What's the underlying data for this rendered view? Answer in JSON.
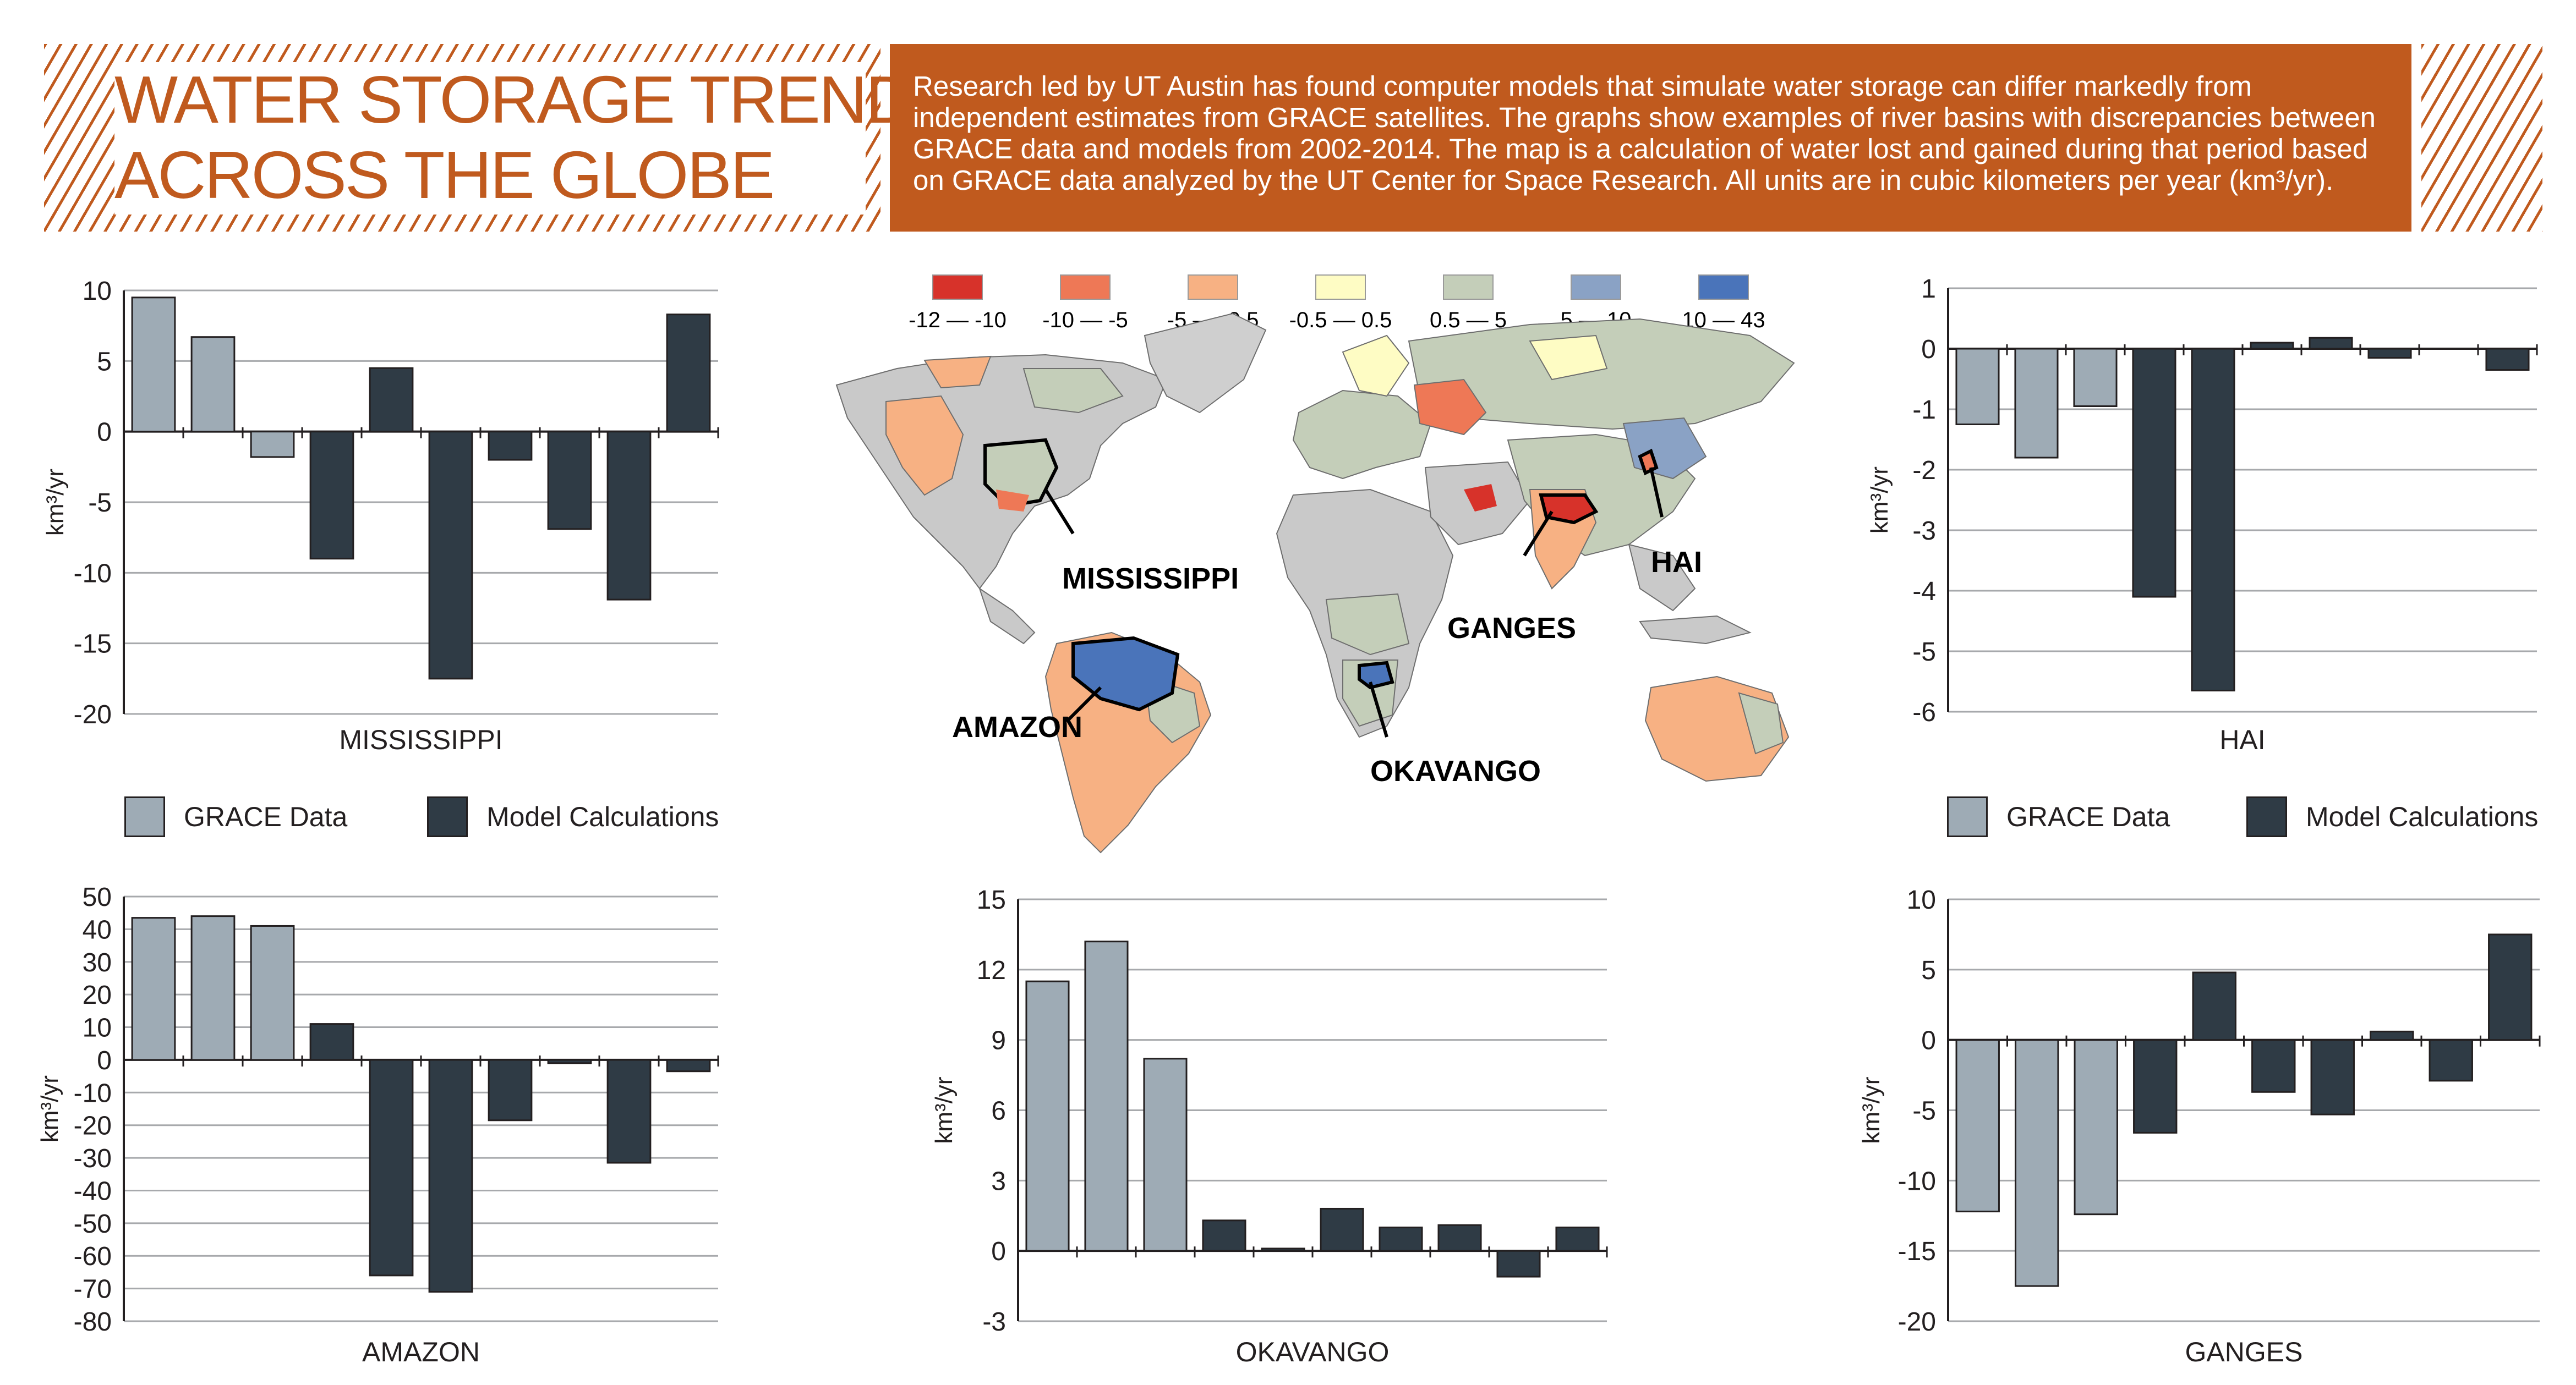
{
  "header": {
    "title_line1": "WATER STORAGE TRENDS",
    "title_line2": "ACROSS THE GLOBE",
    "intro": "Research led by UT Austin has found computer models that simulate water storage can differ markedly from independent estimates from GRACE satellites. The graphs show examples of river basins with discrepancies between GRACE data and models from 2002-2014. The map is a calculation of water lost and gained during that period based on GRACE data analyzed by the UT Center for Space Research. All units are in cubic kilometers per year (km³/yr)."
  },
  "colors": {
    "accent": "#c05a1e",
    "grace": "#9eabb5",
    "model": "#2f3b45"
  },
  "legend": {
    "grace_label": "GRACE Data",
    "model_label": "Model Calculations"
  },
  "map": {
    "legend": [
      {
        "label": "-12 — -10",
        "color": "#d7322a"
      },
      {
        "label": "-10 — -5",
        "color": "#ee7856"
      },
      {
        "label": "-5 — -0.5",
        "color": "#f7b183"
      },
      {
        "label": "-0.5 — 0.5",
        "color": "#fefcc4"
      },
      {
        "label": "0.5 — 5",
        "color": "#c4ceb9"
      },
      {
        "label": "5 — 10",
        "color": "#8aa2c5"
      },
      {
        "label": "10 — 43",
        "color": "#4a74ba"
      }
    ],
    "labels": {
      "mississippi": "MISSISSIPPI",
      "amazon": "AMAZON",
      "ganges": "GANGES",
      "hai": "HAI",
      "okavango": "OKAVANGO"
    }
  },
  "chart_data": [
    {
      "type": "bar",
      "title": "MISSISSIPPI",
      "ylabel": "km³/yr",
      "ylim": [
        -20,
        10
      ],
      "yticks": [
        10,
        5,
        0,
        -5,
        -10,
        -15,
        -20
      ],
      "series": [
        {
          "name": "GRACE Data",
          "values": [
            9.5,
            6.7,
            -1.8,
            null,
            null,
            null,
            null,
            null,
            null,
            null
          ]
        },
        {
          "name": "Model Calculations",
          "values": [
            null,
            null,
            null,
            -9.0,
            4.5,
            -17.5,
            -2.0,
            -6.9,
            -11.9,
            8.3
          ]
        }
      ]
    },
    {
      "type": "bar",
      "title": "HAI",
      "ylabel": "km³/yr",
      "ylim": [
        -6,
        1
      ],
      "yticks": [
        1,
        0,
        -1,
        -2,
        -3,
        -4,
        -5,
        -6
      ],
      "series": [
        {
          "name": "GRACE Data",
          "values": [
            -1.25,
            -1.8,
            -0.95,
            null,
            null,
            null,
            null,
            null,
            null,
            null
          ]
        },
        {
          "name": "Model Calculations",
          "values": [
            null,
            null,
            null,
            -4.1,
            -5.65,
            0.1,
            0.18,
            -0.15,
            null,
            -0.35
          ]
        }
      ]
    },
    {
      "type": "bar",
      "title": "AMAZON",
      "ylabel": "km³/yr",
      "ylim": [
        -80,
        50
      ],
      "yticks": [
        50,
        40,
        30,
        20,
        10,
        0,
        -10,
        -20,
        -30,
        -40,
        -50,
        -60,
        -70,
        -80
      ],
      "series": [
        {
          "name": "GRACE Data",
          "values": [
            43.5,
            44,
            41,
            null,
            null,
            null,
            null,
            null,
            null,
            null
          ]
        },
        {
          "name": "Model Calculations",
          "values": [
            null,
            null,
            null,
            11,
            -66,
            -71,
            -18.5,
            -1,
            -31.5,
            -3.5
          ]
        }
      ]
    },
    {
      "type": "bar",
      "title": "OKAVANGO",
      "ylabel": "km³/yr",
      "ylim": [
        -3,
        15
      ],
      "yticks": [
        15,
        12,
        9,
        6,
        3,
        0,
        -3
      ],
      "series": [
        {
          "name": "GRACE Data",
          "values": [
            11.5,
            13.2,
            8.2,
            null,
            null,
            null,
            null,
            null,
            null,
            null
          ]
        },
        {
          "name": "Model Calculations",
          "values": [
            null,
            null,
            null,
            1.3,
            0.1,
            1.8,
            1.0,
            1.1,
            -1.1,
            1.0
          ]
        }
      ]
    },
    {
      "type": "bar",
      "title": "GANGES",
      "ylabel": "km³/yr",
      "ylim": [
        -20,
        10
      ],
      "yticks": [
        10,
        5,
        0,
        -5,
        -10,
        -15,
        -20
      ],
      "series": [
        {
          "name": "GRACE Data",
          "values": [
            -12.2,
            -17.5,
            -12.4,
            null,
            null,
            null,
            null,
            null,
            null,
            null
          ]
        },
        {
          "name": "Model Calculations",
          "values": [
            null,
            null,
            null,
            -6.6,
            4.8,
            -3.7,
            -5.3,
            0.6,
            -2.9,
            7.5
          ]
        }
      ]
    }
  ]
}
